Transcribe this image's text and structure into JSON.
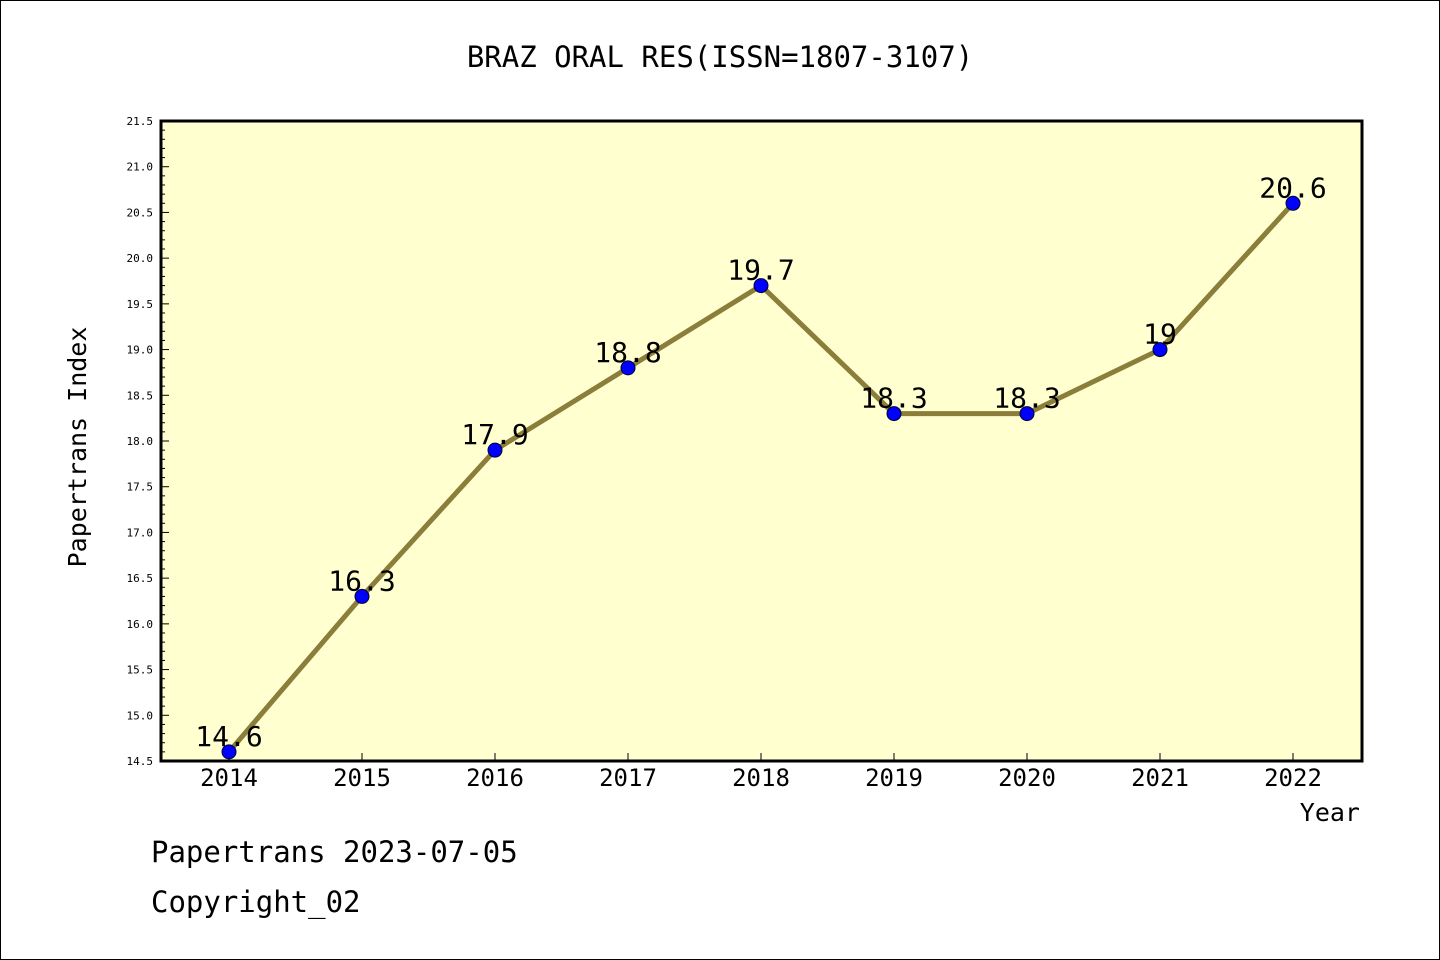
{
  "chart_data": {
    "type": "line",
    "title": "BRAZ ORAL RES(ISSN=1807-3107)",
    "xlabel": "Year",
    "ylabel": "Papertrans Index",
    "categories": [
      "2014",
      "2015",
      "2016",
      "2017",
      "2018",
      "2019",
      "2020",
      "2021",
      "2022"
    ],
    "series": [
      {
        "values": [
          14.6,
          16.3,
          17.9,
          18.8,
          19.7,
          18.3,
          18.3,
          19,
          20.6
        ]
      }
    ],
    "data_labels": [
      "14.6",
      "16.3",
      "17.9",
      "18.8",
      "19.7",
      "18.3",
      "18.3",
      "19",
      "20.6"
    ],
    "ylim": [
      14.5,
      21.5
    ],
    "y_ticks": [
      "14.5",
      "15.0",
      "15.5",
      "16.0",
      "16.5",
      "17.0",
      "17.5",
      "18.0",
      "18.5",
      "19.0",
      "19.5",
      "20.0",
      "20.5",
      "21.0",
      "21.5"
    ],
    "grid": false,
    "legend": "none",
    "colors": {
      "plot_background": "#ffffd0",
      "line": "#8b7d3a",
      "marker": "#0000ff"
    }
  },
  "footer": {
    "source_line": "Papertrans 2023-07-05",
    "copyright_line": "Copyright_02"
  }
}
